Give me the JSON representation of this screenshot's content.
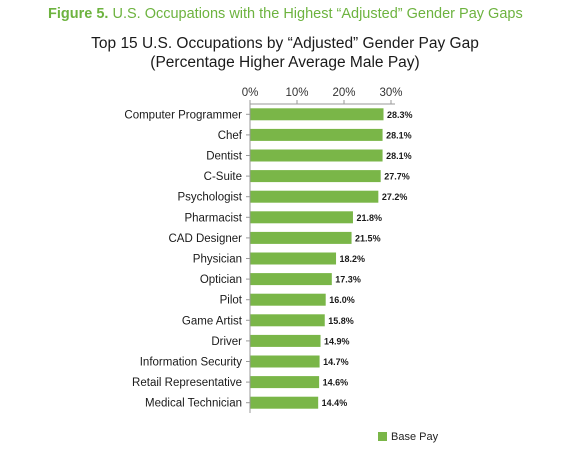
{
  "figure": {
    "label": "Figure 5.",
    "caption": "U.S. Occupations with the Highest “Adjusted” Gender Pay Gaps"
  },
  "colors": {
    "accent": "#6db33f",
    "bar": "#7ab648"
  },
  "chart_data": {
    "type": "bar",
    "orientation": "horizontal",
    "title": "Top 15 U.S. Occupations by “Adjusted” Gender Pay Gap",
    "subtitle": "(Percentage Higher Average Male Pay)",
    "categories": [
      "Computer Programmer",
      "Chef",
      "Dentist",
      "C-Suite",
      "Psychologist",
      "Pharmacist",
      "CAD Designer",
      "Physician",
      "Optician",
      "Pilot",
      "Game Artist",
      "Driver",
      "Information Security",
      "Retail Representative",
      "Medical Technician"
    ],
    "series": [
      {
        "name": "Base Pay",
        "values": [
          28.3,
          28.1,
          28.1,
          27.7,
          27.2,
          21.8,
          21.5,
          18.2,
          17.3,
          16.0,
          15.8,
          14.9,
          14.7,
          14.6,
          14.4
        ],
        "data_labels": [
          "28.3%",
          "28.1%",
          "28.1%",
          "27.7%",
          "27.2%",
          "21.8%",
          "21.5%",
          "18.2%",
          "17.3%",
          "16.0%",
          "15.8%",
          "14.9%",
          "14.7%",
          "14.6%",
          "14.4%"
        ]
      }
    ],
    "xlim": [
      0,
      30
    ],
    "x_ticks": [
      0,
      10,
      20,
      30
    ],
    "x_tick_labels": [
      "0%",
      "10%",
      "20%",
      "30%"
    ],
    "x_axis_position": "top",
    "grid": false,
    "legend_position": "bottom-right"
  }
}
